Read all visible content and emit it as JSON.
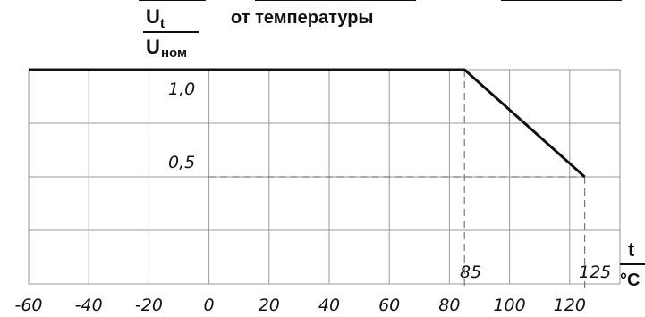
{
  "header": {
    "title": "от температуры"
  },
  "chart_data": {
    "type": "line",
    "title": "от температуры",
    "ylabel": {
      "main": "U",
      "sub": "t",
      "den_main": "U",
      "den_sub": "ном"
    },
    "xlabel": {
      "num": "t",
      "den": "°C"
    },
    "xlim": [
      -60,
      125
    ],
    "ylim": [
      0,
      1.0
    ],
    "x_ticks": [
      "-60",
      "-40",
      "-20",
      "0",
      "20",
      "40",
      "60",
      "80",
      "100",
      "120"
    ],
    "series": [
      {
        "x": [
          -60,
          85,
          125
        ],
        "y": [
          1.0,
          1.0,
          0.5
        ]
      }
    ],
    "annotations": {
      "y_1_0": "1,0",
      "y_0_5": "0,5",
      "x_85": "85",
      "x_125": "125"
    },
    "grid": true
  }
}
